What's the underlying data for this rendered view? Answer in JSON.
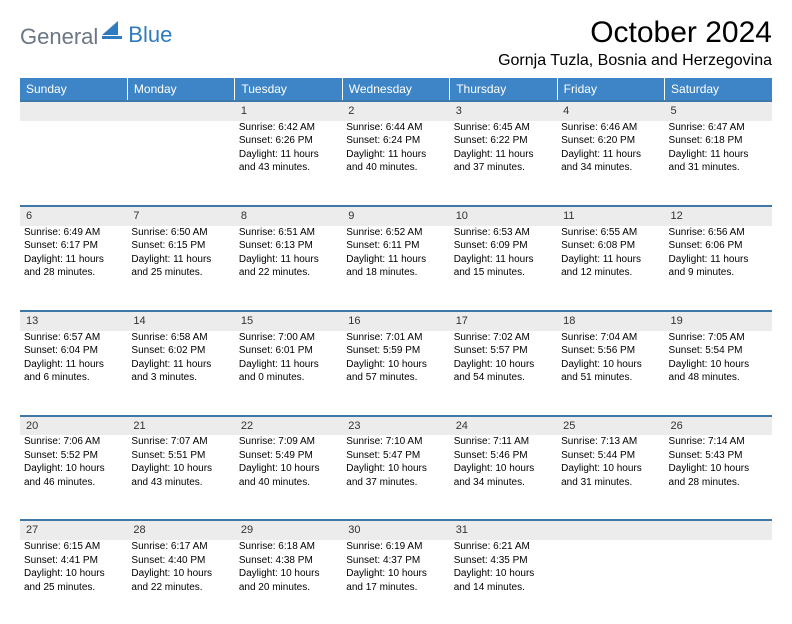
{
  "brand": {
    "part1": "General",
    "part2": "Blue"
  },
  "title": "October 2024",
  "location": "Gornja Tuzla, Bosnia and Herzegovina",
  "colors": {
    "header_bg": "#3d85c6",
    "header_text": "#ffffff",
    "daynum_bg": "#ececec",
    "daynum_border": "#3d78a8",
    "logo_gray": "#6b7785",
    "logo_blue": "#2f7bbf",
    "page_bg": "#ffffff"
  },
  "day_names": [
    "Sunday",
    "Monday",
    "Tuesday",
    "Wednesday",
    "Thursday",
    "Friday",
    "Saturday"
  ],
  "weeks": [
    {
      "nums": [
        "",
        "",
        "1",
        "2",
        "3",
        "4",
        "5"
      ],
      "cells": [
        {},
        {},
        {
          "sunrise": "Sunrise: 6:42 AM",
          "sunset": "Sunset: 6:26 PM",
          "day1": "Daylight: 11 hours",
          "day2": "and 43 minutes."
        },
        {
          "sunrise": "Sunrise: 6:44 AM",
          "sunset": "Sunset: 6:24 PM",
          "day1": "Daylight: 11 hours",
          "day2": "and 40 minutes."
        },
        {
          "sunrise": "Sunrise: 6:45 AM",
          "sunset": "Sunset: 6:22 PM",
          "day1": "Daylight: 11 hours",
          "day2": "and 37 minutes."
        },
        {
          "sunrise": "Sunrise: 6:46 AM",
          "sunset": "Sunset: 6:20 PM",
          "day1": "Daylight: 11 hours",
          "day2": "and 34 minutes."
        },
        {
          "sunrise": "Sunrise: 6:47 AM",
          "sunset": "Sunset: 6:18 PM",
          "day1": "Daylight: 11 hours",
          "day2": "and 31 minutes."
        }
      ]
    },
    {
      "nums": [
        "6",
        "7",
        "8",
        "9",
        "10",
        "11",
        "12"
      ],
      "cells": [
        {
          "sunrise": "Sunrise: 6:49 AM",
          "sunset": "Sunset: 6:17 PM",
          "day1": "Daylight: 11 hours",
          "day2": "and 28 minutes."
        },
        {
          "sunrise": "Sunrise: 6:50 AM",
          "sunset": "Sunset: 6:15 PM",
          "day1": "Daylight: 11 hours",
          "day2": "and 25 minutes."
        },
        {
          "sunrise": "Sunrise: 6:51 AM",
          "sunset": "Sunset: 6:13 PM",
          "day1": "Daylight: 11 hours",
          "day2": "and 22 minutes."
        },
        {
          "sunrise": "Sunrise: 6:52 AM",
          "sunset": "Sunset: 6:11 PM",
          "day1": "Daylight: 11 hours",
          "day2": "and 18 minutes."
        },
        {
          "sunrise": "Sunrise: 6:53 AM",
          "sunset": "Sunset: 6:09 PM",
          "day1": "Daylight: 11 hours",
          "day2": "and 15 minutes."
        },
        {
          "sunrise": "Sunrise: 6:55 AM",
          "sunset": "Sunset: 6:08 PM",
          "day1": "Daylight: 11 hours",
          "day2": "and 12 minutes."
        },
        {
          "sunrise": "Sunrise: 6:56 AM",
          "sunset": "Sunset: 6:06 PM",
          "day1": "Daylight: 11 hours",
          "day2": "and 9 minutes."
        }
      ]
    },
    {
      "nums": [
        "13",
        "14",
        "15",
        "16",
        "17",
        "18",
        "19"
      ],
      "cells": [
        {
          "sunrise": "Sunrise: 6:57 AM",
          "sunset": "Sunset: 6:04 PM",
          "day1": "Daylight: 11 hours",
          "day2": "and 6 minutes."
        },
        {
          "sunrise": "Sunrise: 6:58 AM",
          "sunset": "Sunset: 6:02 PM",
          "day1": "Daylight: 11 hours",
          "day2": "and 3 minutes."
        },
        {
          "sunrise": "Sunrise: 7:00 AM",
          "sunset": "Sunset: 6:01 PM",
          "day1": "Daylight: 11 hours",
          "day2": "and 0 minutes."
        },
        {
          "sunrise": "Sunrise: 7:01 AM",
          "sunset": "Sunset: 5:59 PM",
          "day1": "Daylight: 10 hours",
          "day2": "and 57 minutes."
        },
        {
          "sunrise": "Sunrise: 7:02 AM",
          "sunset": "Sunset: 5:57 PM",
          "day1": "Daylight: 10 hours",
          "day2": "and 54 minutes."
        },
        {
          "sunrise": "Sunrise: 7:04 AM",
          "sunset": "Sunset: 5:56 PM",
          "day1": "Daylight: 10 hours",
          "day2": "and 51 minutes."
        },
        {
          "sunrise": "Sunrise: 7:05 AM",
          "sunset": "Sunset: 5:54 PM",
          "day1": "Daylight: 10 hours",
          "day2": "and 48 minutes."
        }
      ]
    },
    {
      "nums": [
        "20",
        "21",
        "22",
        "23",
        "24",
        "25",
        "26"
      ],
      "cells": [
        {
          "sunrise": "Sunrise: 7:06 AM",
          "sunset": "Sunset: 5:52 PM",
          "day1": "Daylight: 10 hours",
          "day2": "and 46 minutes."
        },
        {
          "sunrise": "Sunrise: 7:07 AM",
          "sunset": "Sunset: 5:51 PM",
          "day1": "Daylight: 10 hours",
          "day2": "and 43 minutes."
        },
        {
          "sunrise": "Sunrise: 7:09 AM",
          "sunset": "Sunset: 5:49 PM",
          "day1": "Daylight: 10 hours",
          "day2": "and 40 minutes."
        },
        {
          "sunrise": "Sunrise: 7:10 AM",
          "sunset": "Sunset: 5:47 PM",
          "day1": "Daylight: 10 hours",
          "day2": "and 37 minutes."
        },
        {
          "sunrise": "Sunrise: 7:11 AM",
          "sunset": "Sunset: 5:46 PM",
          "day1": "Daylight: 10 hours",
          "day2": "and 34 minutes."
        },
        {
          "sunrise": "Sunrise: 7:13 AM",
          "sunset": "Sunset: 5:44 PM",
          "day1": "Daylight: 10 hours",
          "day2": "and 31 minutes."
        },
        {
          "sunrise": "Sunrise: 7:14 AM",
          "sunset": "Sunset: 5:43 PM",
          "day1": "Daylight: 10 hours",
          "day2": "and 28 minutes."
        }
      ]
    },
    {
      "nums": [
        "27",
        "28",
        "29",
        "30",
        "31",
        "",
        ""
      ],
      "cells": [
        {
          "sunrise": "Sunrise: 6:15 AM",
          "sunset": "Sunset: 4:41 PM",
          "day1": "Daylight: 10 hours",
          "day2": "and 25 minutes."
        },
        {
          "sunrise": "Sunrise: 6:17 AM",
          "sunset": "Sunset: 4:40 PM",
          "day1": "Daylight: 10 hours",
          "day2": "and 22 minutes."
        },
        {
          "sunrise": "Sunrise: 6:18 AM",
          "sunset": "Sunset: 4:38 PM",
          "day1": "Daylight: 10 hours",
          "day2": "and 20 minutes."
        },
        {
          "sunrise": "Sunrise: 6:19 AM",
          "sunset": "Sunset: 4:37 PM",
          "day1": "Daylight: 10 hours",
          "day2": "and 17 minutes."
        },
        {
          "sunrise": "Sunrise: 6:21 AM",
          "sunset": "Sunset: 4:35 PM",
          "day1": "Daylight: 10 hours",
          "day2": "and 14 minutes."
        },
        {},
        {}
      ]
    }
  ]
}
